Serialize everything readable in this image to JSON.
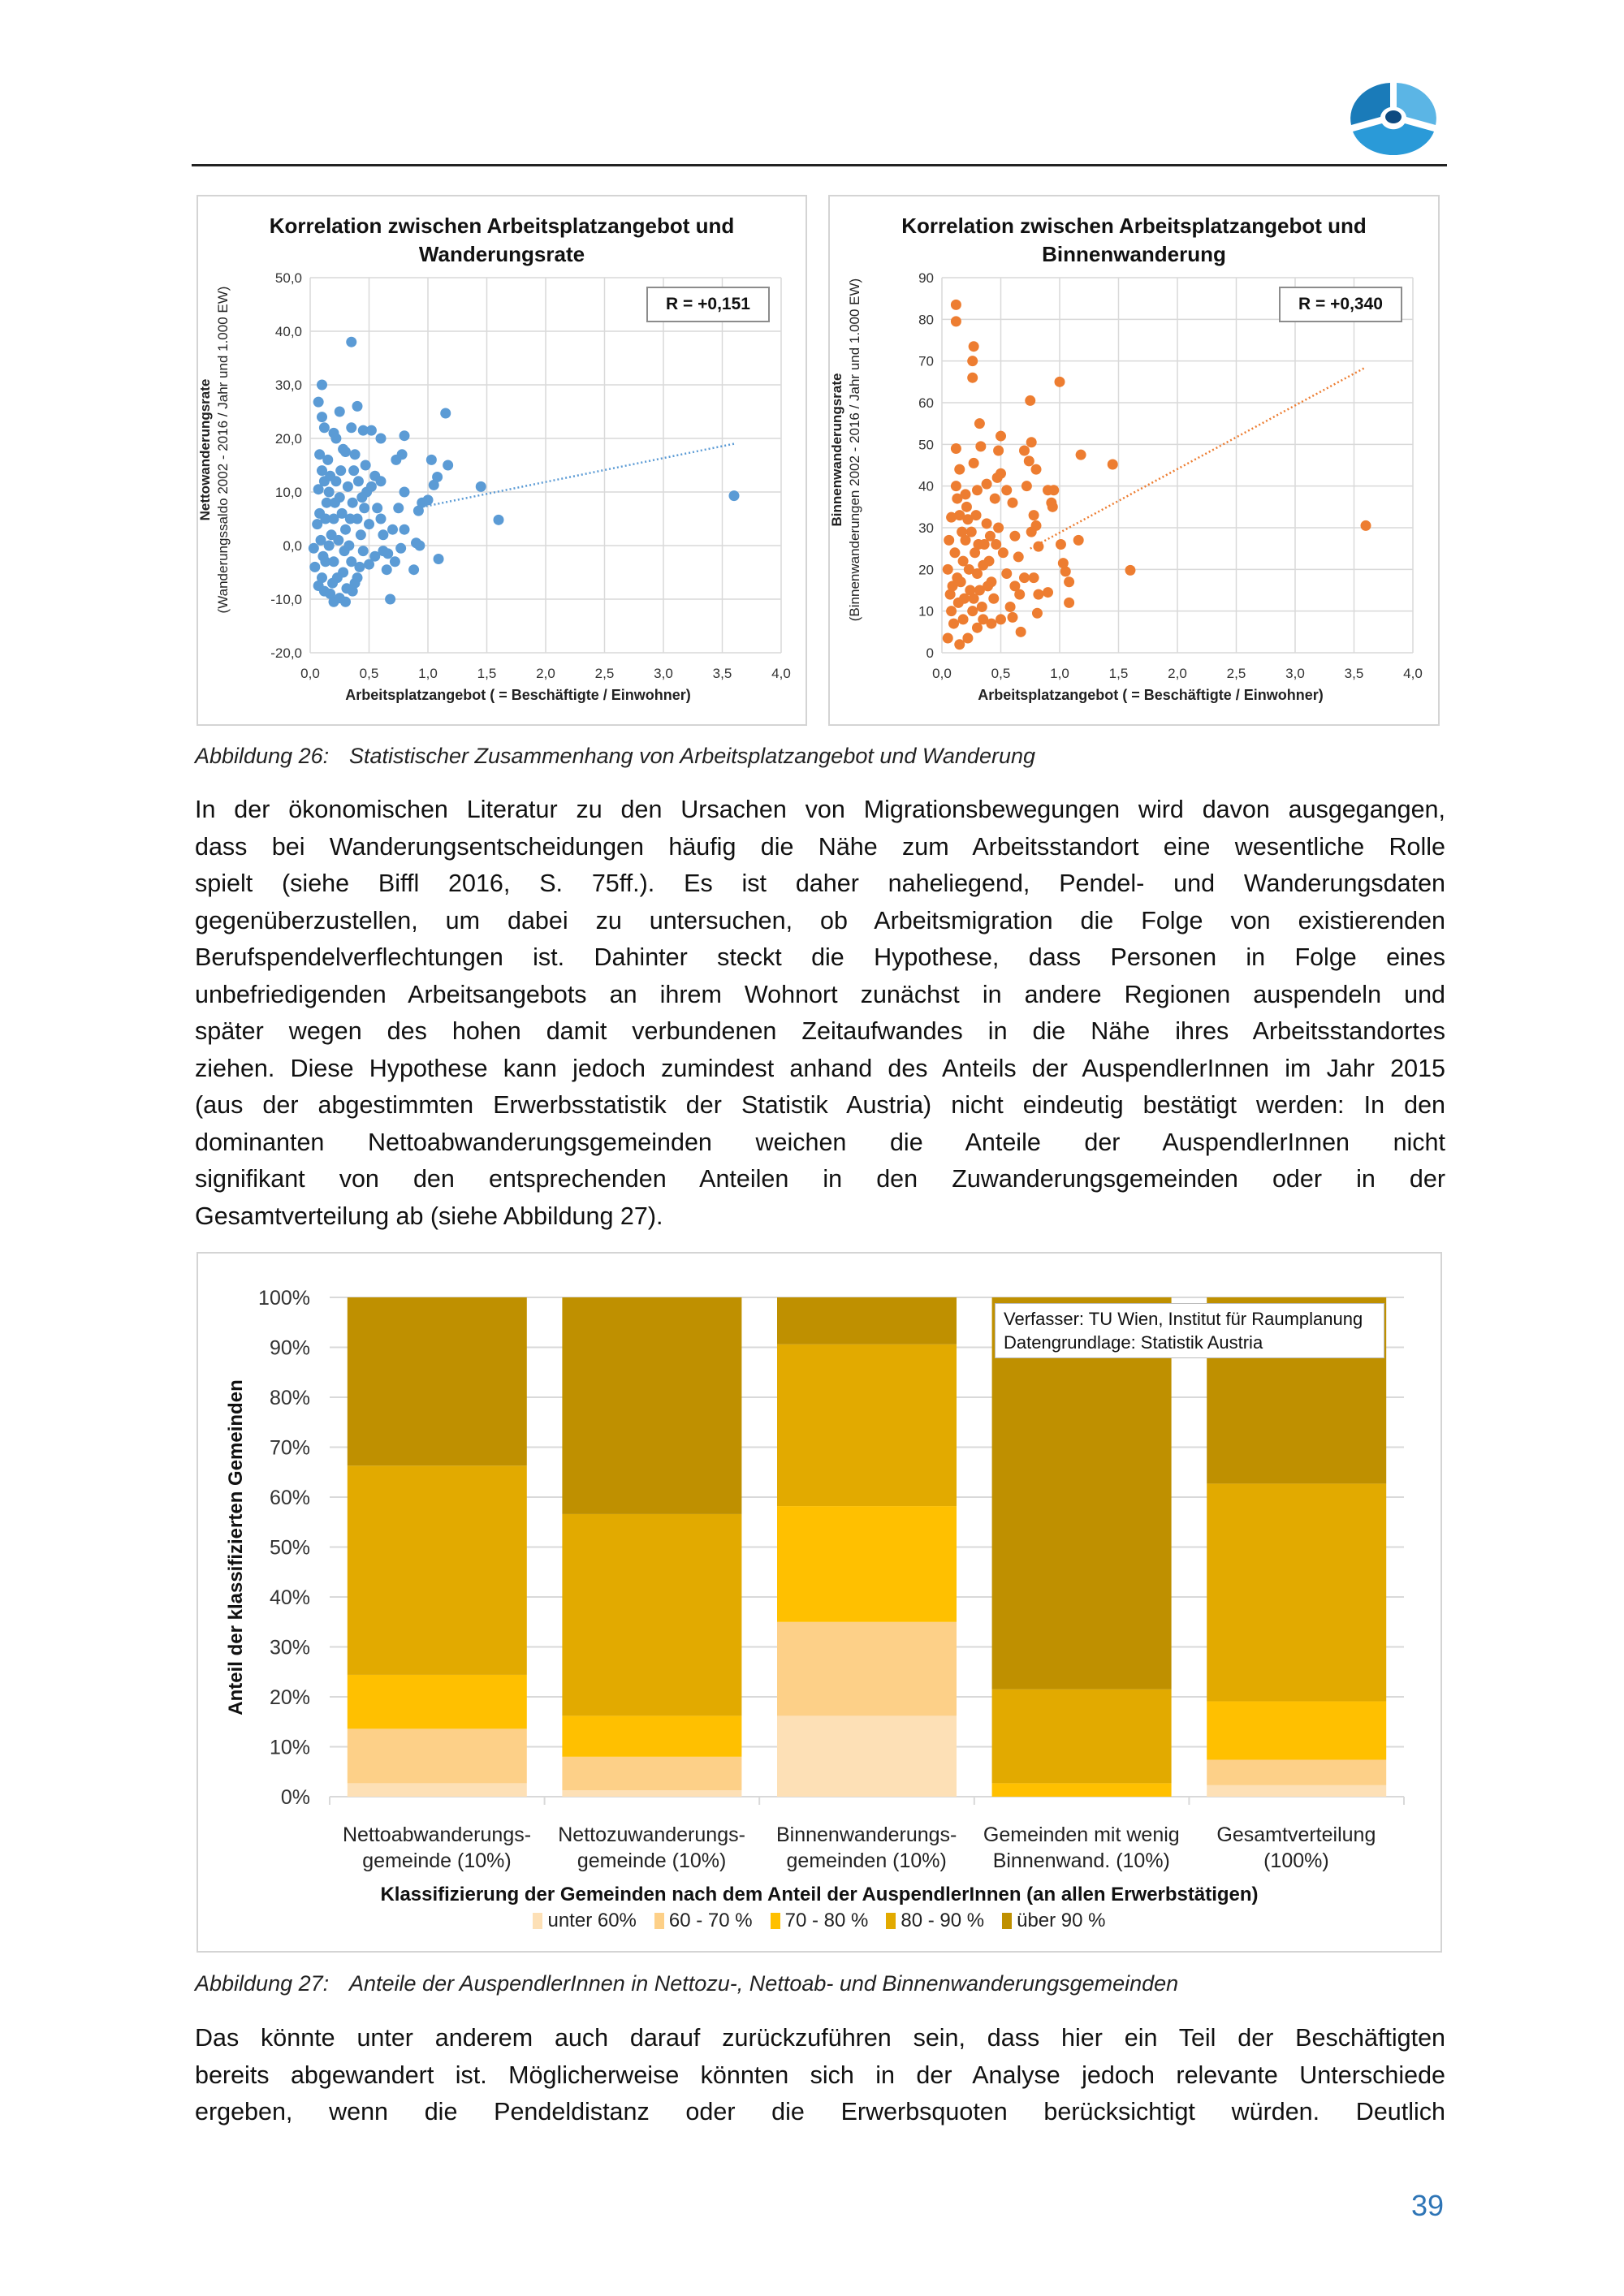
{
  "logo": {
    "name": "institute-logo",
    "colors": [
      "#1a7bb9",
      "#5bb5e5",
      "#2a9ad8",
      "#0d4a80"
    ]
  },
  "figure26": {
    "caption_number": "Abbildung 26:",
    "caption_text": "Statistischer Zusammenhang von Arbeitsplatzangebot und Wanderung"
  },
  "chart_data": [
    {
      "type": "scatter",
      "title_line1": "Korrelation zwischen Arbeitsplatzangebot und",
      "title_line2": "Wanderungsrate",
      "xlabel": "Arbeitsplatzangebot  ( = Beschäftigte / Einwohner)",
      "ylabel_line1": "Nettowanderungsrate",
      "ylabel_line2": "(Wanderungssaldo 2002 - 2016 / Jahr und 1.000 EW)",
      "r_label": "R = +0,151",
      "color": "#5b9bd5",
      "xlim": [
        0,
        4
      ],
      "ylim": [
        -20,
        50
      ],
      "xticks": [
        "0,0",
        "0,5",
        "1,0",
        "1,5",
        "2,0",
        "2,5",
        "3,0",
        "3,5",
        "4,0"
      ],
      "yticks": [
        "-20,0",
        "-10,0",
        "0,0",
        "10,0",
        "20,0",
        "30,0",
        "40,0",
        "50,0"
      ],
      "trendline": [
        [
          0.95,
          7.2
        ],
        [
          3.6,
          19
        ]
      ],
      "points": [
        [
          0.35,
          38
        ],
        [
          0.1,
          30
        ],
        [
          0.07,
          26.8
        ],
        [
          0.1,
          24
        ],
        [
          0.25,
          25
        ],
        [
          0.4,
          26
        ],
        [
          1.15,
          24.7
        ],
        [
          0.6,
          20
        ],
        [
          0.8,
          20.5
        ],
        [
          0.45,
          21.5
        ],
        [
          0.52,
          21.5
        ],
        [
          0.35,
          22
        ],
        [
          0.12,
          22
        ],
        [
          0.2,
          21
        ],
        [
          0.22,
          20
        ],
        [
          1.03,
          16
        ],
        [
          1.17,
          15
        ],
        [
          1.45,
          11
        ],
        [
          1.6,
          4.8
        ],
        [
          3.6,
          9.3
        ],
        [
          1.08,
          12.8
        ],
        [
          1.05,
          11.3
        ],
        [
          1.09,
          -2.5
        ],
        [
          0.88,
          -4.5
        ],
        [
          0.68,
          -10
        ],
        [
          0.65,
          -4.5
        ],
        [
          0.5,
          -3.5
        ],
        [
          0.93,
          0
        ],
        [
          0.9,
          0.5
        ],
        [
          0.75,
          7
        ],
        [
          0.78,
          17
        ],
        [
          0.73,
          16
        ],
        [
          0.8,
          10
        ],
        [
          0.95,
          8
        ],
        [
          0.92,
          6.5
        ],
        [
          1.0,
          8.5
        ],
        [
          0.2,
          -10.5
        ],
        [
          0.3,
          -10.5
        ],
        [
          0.25,
          -9.8
        ],
        [
          0.36,
          -8.5
        ],
        [
          0.07,
          -7.5
        ],
        [
          0.04,
          -4
        ],
        [
          0.03,
          -0.5
        ],
        [
          0.06,
          4
        ],
        [
          0.07,
          10.5
        ],
        [
          0.08,
          17
        ],
        [
          0.15,
          16
        ],
        [
          0.28,
          18
        ],
        [
          0.3,
          17.5
        ],
        [
          0.38,
          17
        ],
        [
          0.47,
          15
        ],
        [
          0.55,
          13
        ],
        [
          0.6,
          12
        ],
        [
          0.48,
          10
        ],
        [
          0.57,
          7
        ],
        [
          0.6,
          5
        ],
        [
          0.62,
          2
        ],
        [
          0.7,
          3
        ],
        [
          0.66,
          -1.5
        ],
        [
          0.72,
          -3
        ],
        [
          0.77,
          -0.5
        ],
        [
          0.8,
          3
        ],
        [
          0.62,
          -1
        ],
        [
          0.55,
          -2
        ],
        [
          0.42,
          -4
        ],
        [
          0.4,
          -6
        ],
        [
          0.38,
          -7
        ],
        [
          0.12,
          -8.5
        ],
        [
          0.17,
          -9
        ],
        [
          0.1,
          -6
        ],
        [
          0.13,
          -3
        ],
        [
          0.16,
          0
        ],
        [
          0.18,
          2
        ],
        [
          0.2,
          5
        ],
        [
          0.14,
          8
        ],
        [
          0.12,
          12
        ],
        [
          0.1,
          14
        ],
        [
          0.16,
          10
        ],
        [
          0.22,
          12
        ],
        [
          0.25,
          9
        ],
        [
          0.27,
          6
        ],
        [
          0.3,
          3
        ],
        [
          0.33,
          0
        ],
        [
          0.35,
          -3
        ],
        [
          0.28,
          -5
        ],
        [
          0.23,
          -6
        ],
        [
          0.2,
          -3
        ],
        [
          0.24,
          1
        ],
        [
          0.26,
          14
        ],
        [
          0.32,
          11
        ],
        [
          0.36,
          8
        ],
        [
          0.4,
          5
        ],
        [
          0.43,
          2
        ],
        [
          0.45,
          -1
        ],
        [
          0.41,
          12
        ],
        [
          0.37,
          14
        ],
        [
          0.09,
          1
        ],
        [
          0.08,
          6
        ],
        [
          0.11,
          -2
        ],
        [
          0.19,
          -7
        ],
        [
          0.31,
          -8
        ],
        [
          0.46,
          7
        ],
        [
          0.5,
          4
        ],
        [
          0.52,
          11
        ],
        [
          0.44,
          9
        ],
        [
          0.34,
          5
        ],
        [
          0.29,
          -1
        ],
        [
          0.21,
          8
        ],
        [
          0.17,
          13
        ],
        [
          0.13,
          5
        ]
      ]
    },
    {
      "type": "scatter",
      "title_line1": "Korrelation zwischen Arbeitsplatzangebot und",
      "title_line2": "Binnenwanderung",
      "xlabel": "Arbeitsplatzangebot  ( = Beschäftigte / Einwohner)",
      "ylabel_line1": "Binnenwanderungsrate",
      "ylabel_line2": "(Binnenwanderungen 2002 - 2016 / Jahr und 1.000 EW)",
      "r_label": "R = +0,340",
      "color": "#ed7d31",
      "xlim": [
        0,
        4
      ],
      "ylim": [
        0,
        90
      ],
      "xticks": [
        "0,0",
        "0,5",
        "1,0",
        "1,5",
        "2,0",
        "2,5",
        "3,0",
        "3,5",
        "4,0"
      ],
      "yticks": [
        "0",
        "10",
        "20",
        "30",
        "40",
        "50",
        "60",
        "70",
        "80",
        "90"
      ],
      "trendline": [
        [
          0.75,
          25
        ],
        [
          3.6,
          68.5
        ]
      ],
      "points": [
        [
          0.12,
          83.5
        ],
        [
          0.12,
          79.5
        ],
        [
          0.27,
          73.5
        ],
        [
          0.26,
          70
        ],
        [
          0.26,
          66
        ],
        [
          1.0,
          65
        ],
        [
          0.75,
          60.5
        ],
        [
          0.32,
          55
        ],
        [
          0.5,
          52
        ],
        [
          0.76,
          50.5
        ],
        [
          0.12,
          49
        ],
        [
          0.33,
          49.5
        ],
        [
          0.48,
          48.5
        ],
        [
          0.7,
          48.5
        ],
        [
          1.18,
          47.5
        ],
        [
          1.45,
          45.2
        ],
        [
          0.74,
          46
        ],
        [
          0.27,
          45.5
        ],
        [
          0.15,
          44
        ],
        [
          0.8,
          44
        ],
        [
          0.5,
          43
        ],
        [
          0.47,
          42
        ],
        [
          0.38,
          40.5
        ],
        [
          0.9,
          39
        ],
        [
          0.95,
          39
        ],
        [
          0.93,
          36
        ],
        [
          0.94,
          35
        ],
        [
          0.55,
          39
        ],
        [
          0.72,
          40
        ],
        [
          0.78,
          33
        ],
        [
          0.8,
          30.5
        ],
        [
          0.76,
          29
        ],
        [
          1.01,
          26
        ],
        [
          1.16,
          27
        ],
        [
          0.82,
          25.5
        ],
        [
          1.03,
          21.5
        ],
        [
          1.05,
          19.5
        ],
        [
          1.6,
          19.8
        ],
        [
          3.6,
          30.5
        ],
        [
          1.08,
          17
        ],
        [
          1.08,
          12
        ],
        [
          0.9,
          14.5
        ],
        [
          0.78,
          18
        ],
        [
          0.82,
          14
        ],
        [
          0.81,
          9.5
        ],
        [
          0.6,
          8.5
        ],
        [
          0.67,
          5
        ],
        [
          0.05,
          3.5
        ],
        [
          0.15,
          2
        ],
        [
          0.22,
          3.5
        ],
        [
          0.3,
          6
        ],
        [
          0.12,
          40
        ],
        [
          0.13,
          37
        ],
        [
          0.2,
          38
        ],
        [
          0.3,
          39
        ],
        [
          0.45,
          37
        ],
        [
          0.6,
          36
        ],
        [
          0.62,
          28
        ],
        [
          0.65,
          23
        ],
        [
          0.62,
          16
        ],
        [
          0.7,
          18
        ],
        [
          0.66,
          14
        ],
        [
          0.58,
          11
        ],
        [
          0.5,
          8
        ],
        [
          0.42,
          7
        ],
        [
          0.35,
          8
        ],
        [
          0.08,
          32.5
        ],
        [
          0.06,
          27
        ],
        [
          0.05,
          20
        ],
        [
          0.07,
          14
        ],
        [
          0.08,
          10
        ],
        [
          0.1,
          7
        ],
        [
          0.14,
          12
        ],
        [
          0.16,
          17
        ],
        [
          0.18,
          22
        ],
        [
          0.2,
          27
        ],
        [
          0.22,
          32
        ],
        [
          0.25,
          29
        ],
        [
          0.28,
          24
        ],
        [
          0.3,
          19
        ],
        [
          0.32,
          15
        ],
        [
          0.34,
          11
        ],
        [
          0.36,
          26
        ],
        [
          0.38,
          31
        ],
        [
          0.4,
          22
        ],
        [
          0.42,
          17
        ],
        [
          0.44,
          13
        ],
        [
          0.46,
          26
        ],
        [
          0.48,
          30
        ],
        [
          0.52,
          24
        ],
        [
          0.55,
          19
        ],
        [
          0.24,
          15
        ],
        [
          0.26,
          10
        ],
        [
          0.18,
          8
        ],
        [
          0.11,
          24
        ],
        [
          0.13,
          18
        ],
        [
          0.17,
          29
        ],
        [
          0.21,
          35
        ],
        [
          0.29,
          33
        ],
        [
          0.35,
          21
        ],
        [
          0.39,
          16
        ],
        [
          0.41,
          28
        ],
        [
          0.09,
          16
        ],
        [
          0.23,
          20
        ],
        [
          0.27,
          13
        ],
        [
          0.31,
          26
        ],
        [
          0.19,
          13
        ],
        [
          0.15,
          33
        ]
      ]
    },
    {
      "type": "bar",
      "stacked": true,
      "ylabel": "Anteil der klassifizierten Gemeinden",
      "xlabel": "Klassifizierung der Gemeinden nach dem Anteil der AuspendlerInnen (an allen Erwerbstätigen)",
      "ylim": [
        0,
        100
      ],
      "yticks": [
        "0%",
        "10%",
        "20%",
        "30%",
        "40%",
        "50%",
        "60%",
        "70%",
        "80%",
        "90%",
        "100%"
      ],
      "categories": [
        {
          "line1": "Nettoabwanderungs-",
          "line2": "gemeinde (10%)"
        },
        {
          "line1": "Nettozuwanderungs-",
          "line2": "gemeinde (10%)"
        },
        {
          "line1": "Binnenwanderungs-",
          "line2": "gemeinden (10%)"
        },
        {
          "line1": "Gemeinden mit wenig",
          "line2": "Binnenwand. (10%)"
        },
        {
          "line1": "Gesamtverteilung",
          "line2": "(100%)"
        }
      ],
      "series": [
        {
          "name": "unter 60%",
          "color": "#fde0b6",
          "values": [
            2.7,
            1.3,
            16.2,
            0,
            2.3
          ]
        },
        {
          "name": "60 - 70 %",
          "color": "#fdd088",
          "values": [
            10.9,
            6.7,
            18.8,
            0,
            5.1
          ]
        },
        {
          "name": "70 - 80 %",
          "color": "#ffc000",
          "values": [
            10.8,
            8.2,
            23.2,
            2.7,
            11.7
          ]
        },
        {
          "name": "80 - 90 %",
          "color": "#e2aa00",
          "values": [
            41.9,
            40.4,
            32.4,
            18.8,
            43.6
          ]
        },
        {
          "name": "über 90 %",
          "color": "#bf9000",
          "values": [
            33.7,
            43.4,
            9.4,
            78.5,
            37.3
          ]
        }
      ],
      "annotation_line1": "Verfasser: TU Wien, Institut für Raumplanung",
      "annotation_line2": "Datengrundlage: Statistik Austria",
      "legend": "bottom"
    }
  ],
  "paragraph1": {
    "lines": [
      "In der ökonomischen Literatur zu den Ursachen von Migrationsbewegungen wird davon ausgegangen,",
      "dass bei Wanderungsentscheidungen häufig die Nähe zum Arbeitsstandort eine wesentliche Rolle",
      "spielt (siehe Biffl 2016, S. 75ff.). Es ist daher naheliegend, Pendel- und Wanderungsdaten",
      "gegenüberzustellen, um dabei zu untersuchen, ob Arbeitsmigration die Folge von existierenden",
      "Berufspendelverflechtungen ist. Dahinter steckt die Hypothese, dass Personen in Folge eines",
      "unbefriedigenden Arbeitsangebots an ihrem Wohnort zunächst in andere Regionen auspendeln und",
      "später wegen des hohen damit verbundenen Zeitaufwandes in die Nähe ihres Arbeitsstandortes",
      "ziehen. Diese Hypothese kann jedoch zumindest anhand des Anteils der AuspendlerInnen im Jahr 2015",
      "(aus der abgestimmten Erwerbsstatistik der Statistik Austria) nicht eindeutig bestätigt werden: In den",
      "dominanten Nettoabwanderungsgemeinden weichen die Anteile der AuspendlerInnen nicht",
      "signifikant von den entsprechenden Anteilen in den Zuwanderungsgemeinden oder in der",
      "Gesamtverteilung ab (siehe Abbildung 27)."
    ]
  },
  "figure27": {
    "caption_number": "Abbildung 27:",
    "caption_text": "Anteile der AuspendlerInnen in Nettozu-, Nettoab- und Binnenwanderungsgemeinden"
  },
  "paragraph2": {
    "lines": [
      "Das könnte unter anderem auch darauf zurückzuführen sein, dass hier ein Teil der Beschäftigten",
      "bereits abgewandert ist. Möglicherweise könnten sich in der Analyse jedoch relevante Unterschiede",
      "ergeben, wenn die Pendeldistanz oder die Erwerbsquoten berücksichtigt würden. Deutlich"
    ]
  },
  "page_number": "39"
}
